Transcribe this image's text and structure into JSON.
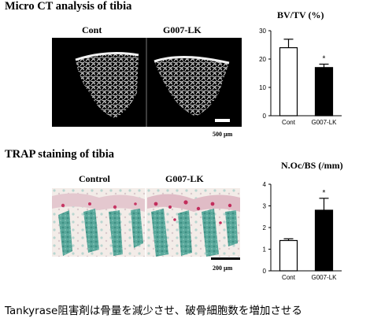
{
  "sections": {
    "micro_ct": {
      "title": "Micro CT analysis of tibia",
      "panels": [
        "Cont",
        "G007-LK"
      ],
      "scale_bar": "500 µm"
    },
    "trap": {
      "title": "TRAP staining of tibia",
      "panels": [
        "Control",
        "G007-LK"
      ],
      "scale_bar": "200 µm"
    }
  },
  "caption": "Tankyrase阻害剤は骨量を減少させ、破骨細胞数を増加させる",
  "colors": {
    "control_bar": "#ffffff",
    "treatment_bar": "#000000",
    "ct_background": "#000000"
  },
  "chart_data": [
    {
      "type": "bar",
      "title": "BV/TV (%)",
      "categories": [
        "Cont",
        "G007-LK"
      ],
      "values": [
        24.0,
        17.0
      ],
      "errors": [
        3.0,
        1.2
      ],
      "significance": [
        "",
        "*"
      ],
      "yticks": [
        0,
        10,
        20,
        30
      ],
      "ylim": [
        0,
        30
      ],
      "bar_colors": [
        "#ffffff",
        "#000000"
      ]
    },
    {
      "type": "bar",
      "title": "N.Oc/BS (/mm)",
      "categories": [
        "Cont",
        "G007-LK"
      ],
      "values": [
        1.4,
        2.8
      ],
      "errors": [
        0.08,
        0.55
      ],
      "significance": [
        "",
        "*"
      ],
      "yticks": [
        0,
        1,
        2,
        3,
        4
      ],
      "ylim": [
        0,
        4
      ],
      "bar_colors": [
        "#ffffff",
        "#000000"
      ]
    }
  ]
}
